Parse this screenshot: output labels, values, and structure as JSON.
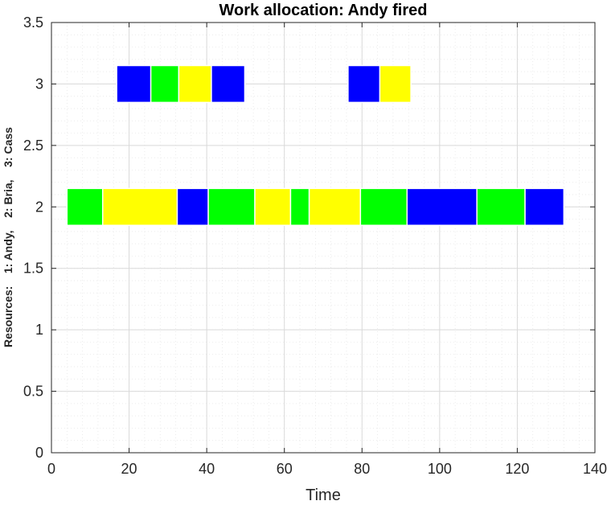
{
  "chart_data": {
    "type": "bar",
    "orientation": "horizontal-gantt",
    "title": "Work allocation: Andy fired",
    "xlabel": "Time",
    "ylabel": "Resources:    1: Andy,    2: Bria,    3: Cass",
    "xlim": [
      0,
      140
    ],
    "ylim": [
      0,
      3.5
    ],
    "xticks": [
      0,
      20,
      40,
      60,
      80,
      100,
      120,
      140
    ],
    "xtick_labels": [
      "0",
      "20",
      "40",
      "60",
      "80",
      "100",
      "120",
      "140"
    ],
    "yticks": [
      0,
      0.5,
      1,
      1.5,
      2,
      2.5,
      3,
      3.5
    ],
    "ytick_labels": [
      "0",
      "0.5",
      "1",
      "1.5",
      "2",
      "2.5",
      "3",
      "3.5"
    ],
    "grid": true,
    "minor_grid": true,
    "bar_height": 0.3,
    "colors": {
      "blue": "#0000ff",
      "green": "#00ff00",
      "yellow": "#ffff00"
    },
    "tasks": [
      {
        "resource": 3,
        "start": 16.8,
        "end": 25.6,
        "color": "blue"
      },
      {
        "resource": 3,
        "start": 25.6,
        "end": 32.8,
        "color": "green"
      },
      {
        "resource": 3,
        "start": 32.8,
        "end": 41.2,
        "color": "yellow"
      },
      {
        "resource": 3,
        "start": 41.2,
        "end": 49.8,
        "color": "blue"
      },
      {
        "resource": 3,
        "start": 76.4,
        "end": 84.6,
        "color": "blue"
      },
      {
        "resource": 3,
        "start": 84.6,
        "end": 92.6,
        "color": "yellow"
      },
      {
        "resource": 2,
        "start": 4.0,
        "end": 13.2,
        "color": "green"
      },
      {
        "resource": 2,
        "start": 13.2,
        "end": 32.4,
        "color": "yellow"
      },
      {
        "resource": 2,
        "start": 32.4,
        "end": 40.4,
        "color": "blue"
      },
      {
        "resource": 2,
        "start": 40.4,
        "end": 52.4,
        "color": "green"
      },
      {
        "resource": 2,
        "start": 52.4,
        "end": 61.6,
        "color": "yellow"
      },
      {
        "resource": 2,
        "start": 61.6,
        "end": 66.4,
        "color": "green"
      },
      {
        "resource": 2,
        "start": 66.4,
        "end": 79.6,
        "color": "yellow"
      },
      {
        "resource": 2,
        "start": 79.6,
        "end": 91.6,
        "color": "green"
      },
      {
        "resource": 2,
        "start": 91.6,
        "end": 109.6,
        "color": "blue"
      },
      {
        "resource": 2,
        "start": 109.6,
        "end": 122.0,
        "color": "green"
      },
      {
        "resource": 2,
        "start": 122.0,
        "end": 132.0,
        "color": "blue"
      }
    ]
  }
}
